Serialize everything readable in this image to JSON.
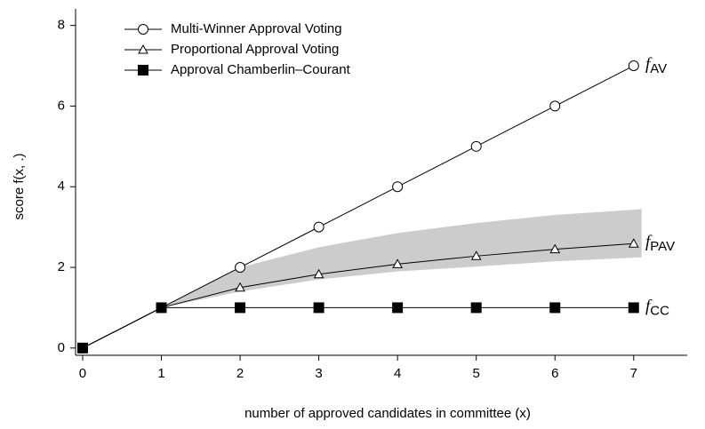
{
  "chart_data": {
    "type": "line",
    "xlabel": "number of approved candidates in committee (x)",
    "ylabel": "score f(x, .)",
    "x": [
      0,
      1,
      2,
      3,
      4,
      5,
      6,
      7
    ],
    "series": [
      {
        "name": "Multi-Winner Approval Voting",
        "color": "#000000",
        "marker": "circle",
        "values": [
          0,
          1,
          2,
          3,
          4,
          5,
          6,
          7
        ]
      },
      {
        "name": "Proportional Approval Voting",
        "color": "#000000",
        "marker": "triangle",
        "values": [
          0,
          1,
          1.5,
          1.83,
          2.08,
          2.28,
          2.45,
          2.59
        ]
      },
      {
        "name": "Approval Chamberlin–Courant",
        "color": "#000000",
        "marker": "square",
        "values": [
          0,
          1,
          1,
          1,
          1,
          1,
          1,
          1
        ]
      }
    ],
    "band": {
      "color": "#cccccc",
      "x": [
        1,
        2,
        3,
        4,
        5,
        6,
        7,
        7.1
      ],
      "lower": [
        1,
        1.4,
        1.7,
        1.9,
        2.02,
        2.15,
        2.24,
        2.25
      ],
      "upper": [
        1,
        2.0,
        2.5,
        2.85,
        3.1,
        3.3,
        3.43,
        3.45
      ]
    },
    "annotations": [
      {
        "text": "f",
        "sub": "AV",
        "y": 7
      },
      {
        "text": "f",
        "sub": "PAV",
        "y": 2.59
      },
      {
        "text": "f",
        "sub": "CC",
        "y": 1
      }
    ],
    "xlim": [
      -0.09,
      7.68
    ],
    "ylim": [
      -0.18,
      8.41
    ],
    "xticks": [
      0,
      1,
      2,
      3,
      4,
      5,
      6,
      7
    ],
    "yticks": [
      0,
      2,
      4,
      6,
      8
    ],
    "legend": "upper left"
  }
}
